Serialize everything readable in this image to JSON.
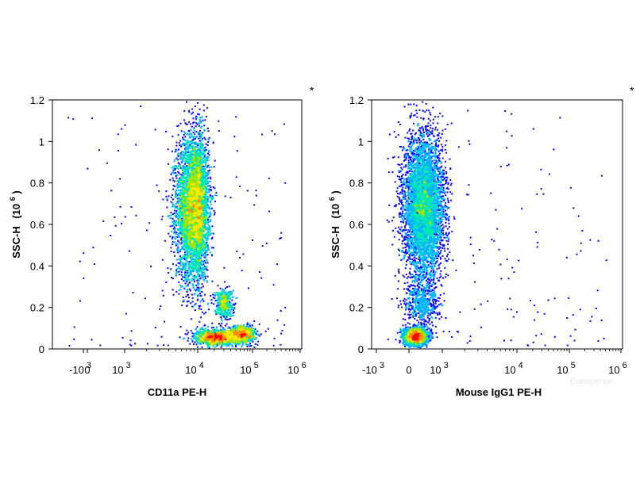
{
  "chart_data": [
    {
      "type": "scatter",
      "subtype": "flow-cytometry-density",
      "corner_mark": "*",
      "xlabel": "CD11a PE-H",
      "ylabel": "SSC-H",
      "ylabel_exp": "(10",
      "ylabel_exp_sup": "6",
      "ylabel_close": ")",
      "x_scale": "biexponential",
      "x_ticks": [
        {
          "base": "-10",
          "sup": "3",
          "value": -1000
        },
        {
          "base": "0",
          "sup": "",
          "value": 0
        },
        {
          "base": "10",
          "sup": "3",
          "value": 1000
        },
        {
          "base": "10",
          "sup": "4",
          "value": 10000
        },
        {
          "base": "10",
          "sup": "5",
          "value": 100000
        },
        {
          "base": "10",
          "sup": "6",
          "value": 1000000
        }
      ],
      "ylim": [
        0,
        1.2
      ],
      "y_ticks": [
        "0",
        "0.2",
        "0.4",
        "0.6",
        "0.8",
        "1",
        "1.2"
      ],
      "y_tick_values": [
        0,
        0.2,
        0.4,
        0.6,
        0.8,
        1.0,
        1.2
      ],
      "populations": [
        {
          "x_center": 9000,
          "y_center": 0.68,
          "x_spread_decades": 0.12,
          "y_spread": 0.17,
          "count": 5200
        },
        {
          "x_center": 30000,
          "y_center": 0.22,
          "x_spread_decades": 0.08,
          "y_spread": 0.035,
          "count": 450
        },
        {
          "x_center": 22000,
          "y_center": 0.055,
          "x_spread_decades": 0.18,
          "y_spread": 0.018,
          "count": 1500
        },
        {
          "x_center": 65000,
          "y_center": 0.07,
          "x_spread_decades": 0.12,
          "y_spread": 0.02,
          "count": 900
        }
      ]
    },
    {
      "type": "scatter",
      "subtype": "flow-cytometry-density",
      "corner_mark": "*",
      "xlabel": "Mouse IgG1 PE-H",
      "ylabel": "SSC-H",
      "ylabel_exp": "(10",
      "ylabel_exp_sup": "6",
      "ylabel_close": ")",
      "x_scale": "biexponential",
      "x_ticks": [
        {
          "base": "-10",
          "sup": "3",
          "value": -1000
        },
        {
          "base": "0",
          "sup": "",
          "value": 0
        },
        {
          "base": "10",
          "sup": "3",
          "value": 1000
        },
        {
          "base": "10",
          "sup": "4",
          "value": 10000
        },
        {
          "base": "10",
          "sup": "5",
          "value": 100000
        },
        {
          "base": "10",
          "sup": "6",
          "value": 1000000
        }
      ],
      "ylim": [
        0,
        1.2
      ],
      "y_ticks": [
        "0",
        "0.2",
        "0.4",
        "0.6",
        "0.8",
        "1",
        "1.2"
      ],
      "y_tick_values": [
        0,
        0.2,
        0.4,
        0.6,
        0.8,
        1.0,
        1.2
      ],
      "populations": [
        {
          "x_center": 450,
          "y_center": 0.68,
          "x_spread": 300,
          "y_spread": 0.17,
          "count": 5200
        },
        {
          "x_center": 400,
          "y_center": 0.22,
          "x_spread": 260,
          "y_spread": 0.05,
          "count": 500
        },
        {
          "x_center": 200,
          "y_center": 0.06,
          "x_spread": 180,
          "y_spread": 0.02,
          "count": 2200
        }
      ]
    }
  ],
  "watermark": "Elabscience",
  "colors": {
    "density_scale": [
      "#0000ff",
      "#00b4ff",
      "#00e6b4",
      "#a0e600",
      "#ffe600",
      "#ff8c00",
      "#ff0000"
    ],
    "axis": "#000000",
    "background": "#ffffff"
  }
}
